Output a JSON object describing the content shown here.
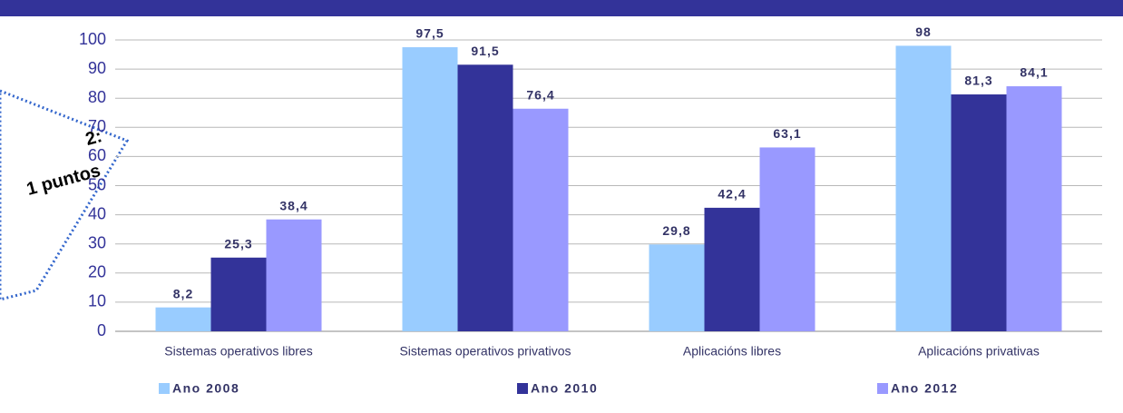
{
  "chart_data": {
    "type": "bar",
    "categories": [
      "Sistemas operativos libres",
      "Sistemas operativos privativos",
      "Aplicacións libres",
      "Aplicacións privativas"
    ],
    "series": [
      {
        "name": "Ano 2008",
        "color": "#99ccff",
        "values": [
          8.2,
          97.5,
          29.8,
          98
        ],
        "value_labels": [
          "8,2",
          "97,5",
          "29,8",
          "98"
        ]
      },
      {
        "name": "Ano 2010",
        "color": "#333399",
        "values": [
          25.3,
          91.5,
          42.4,
          81.3
        ],
        "value_labels": [
          "25,3",
          "91,5",
          "42,4",
          "81,3"
        ]
      },
      {
        "name": "Ano 2012",
        "color": "#9999ff",
        "values": [
          38.4,
          76.4,
          63.1,
          84.1
        ],
        "value_labels": [
          "38,4",
          "76,4",
          "63,1",
          "84,1"
        ]
      }
    ],
    "ylim": [
      0,
      100
    ],
    "yticks": [
      0,
      10,
      20,
      30,
      40,
      50,
      60,
      70,
      80,
      90,
      100
    ],
    "grid": true,
    "legend": "bottom",
    "annotations": [
      "2:",
      "1 puntos"
    ]
  }
}
